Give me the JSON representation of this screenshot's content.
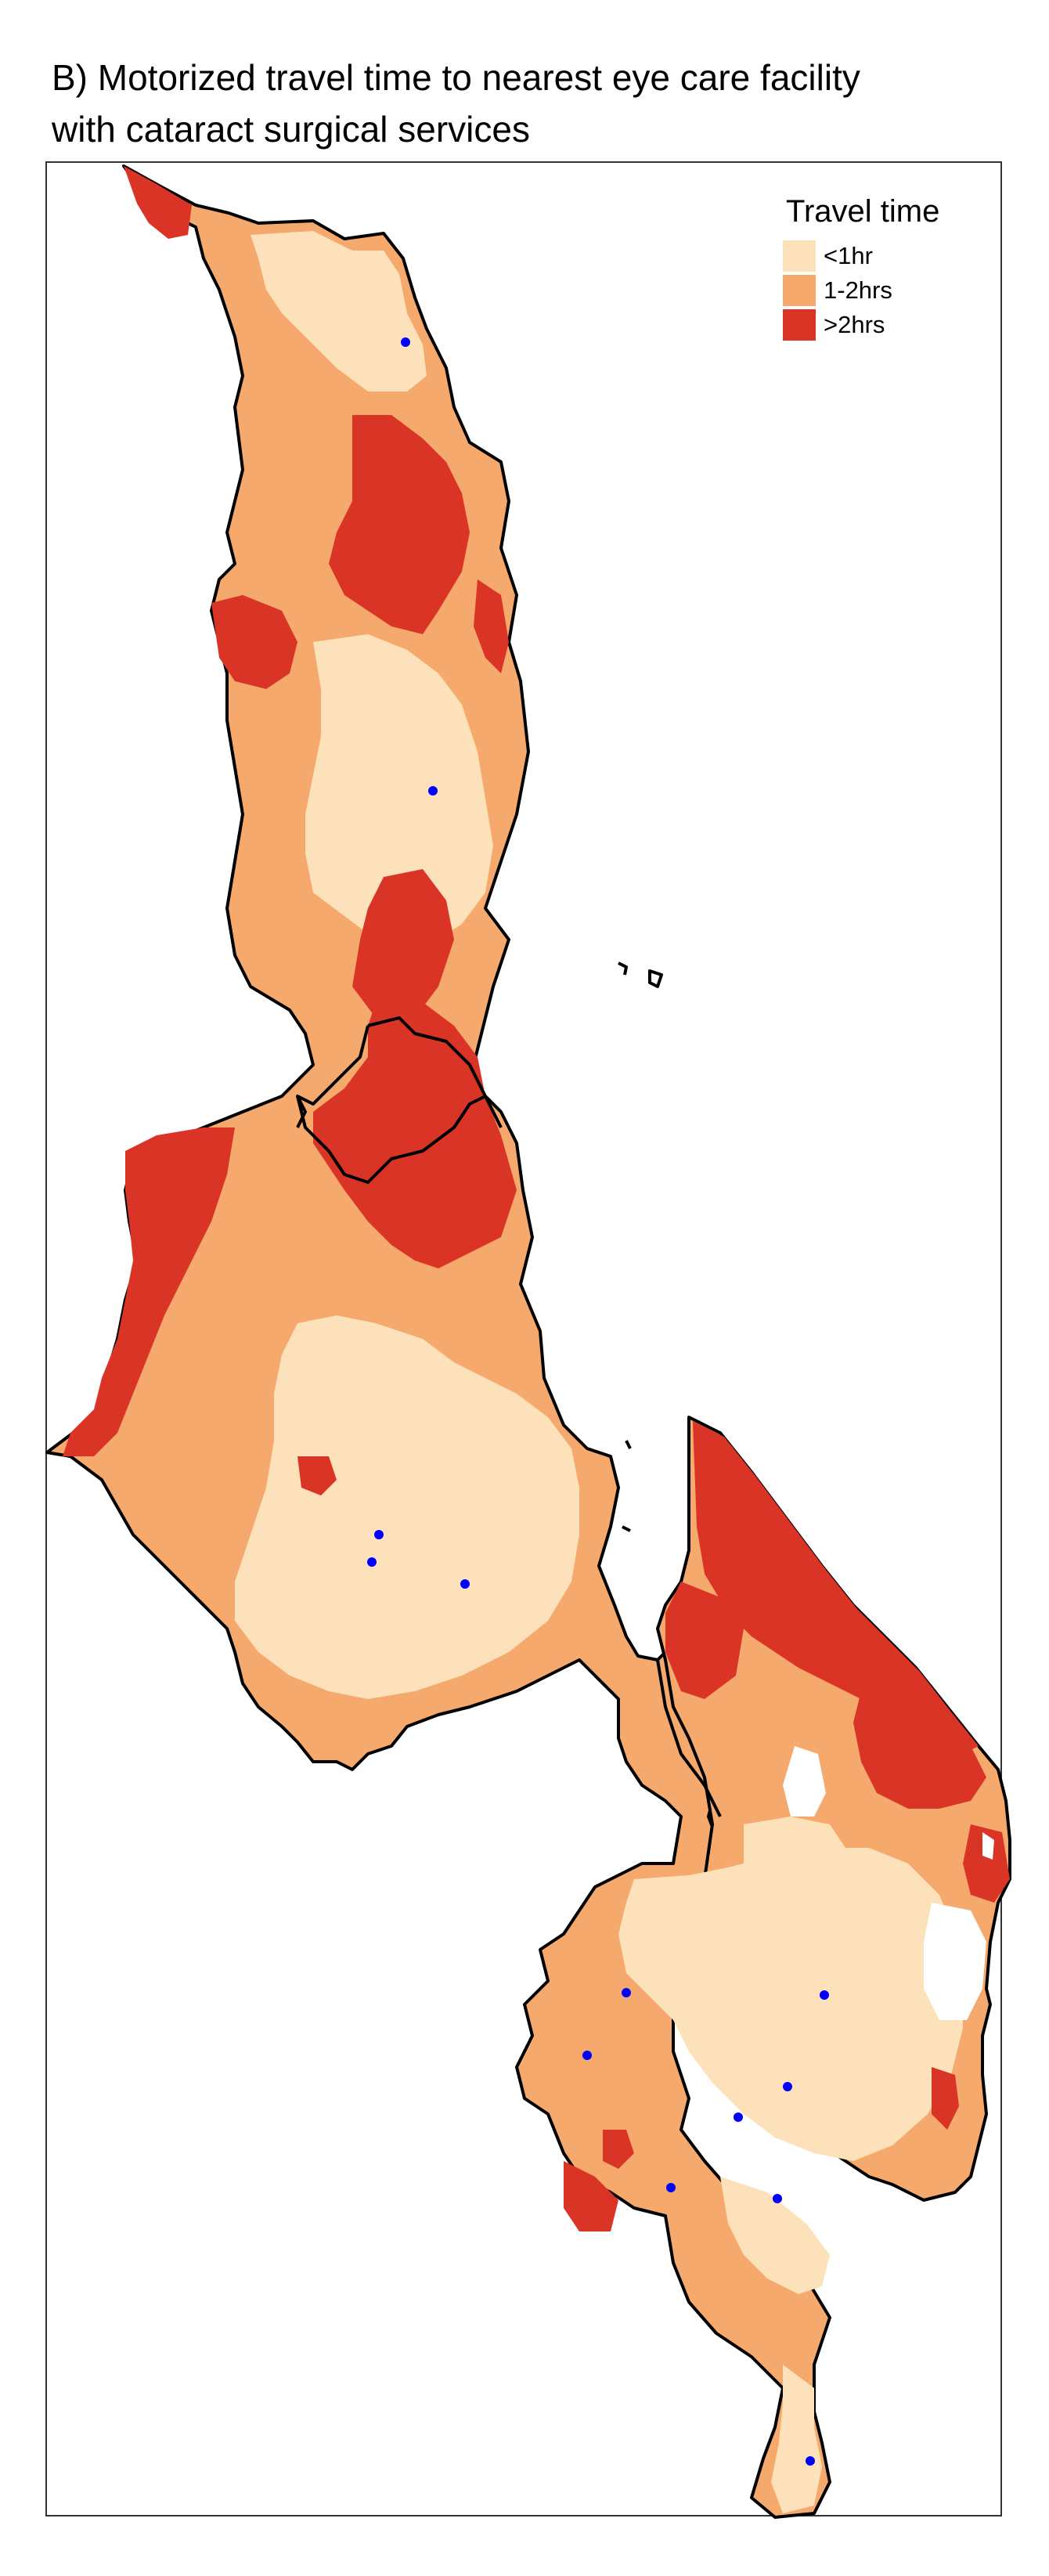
{
  "title": {
    "line1": "B) Motorized travel time to nearest eye care facility",
    "line2": "with cataract surgical services"
  },
  "legend": {
    "title": "Travel time",
    "items": [
      {
        "label": "<1hr",
        "color": "#fde1bb"
      },
      {
        "label": "1-2hrs",
        "color": "#f6a96c"
      },
      {
        "label": ">2hrs",
        "color": "#d93426"
      }
    ]
  },
  "colors": {
    "under_1hr": "#fde1bb",
    "one_to_two_hrs": "#f6a96c",
    "over_2hrs": "#d93426",
    "facility": "#0000ff",
    "border": "#000000",
    "lake": "#ffffff"
  },
  "facility_marker": "blue-dot"
}
